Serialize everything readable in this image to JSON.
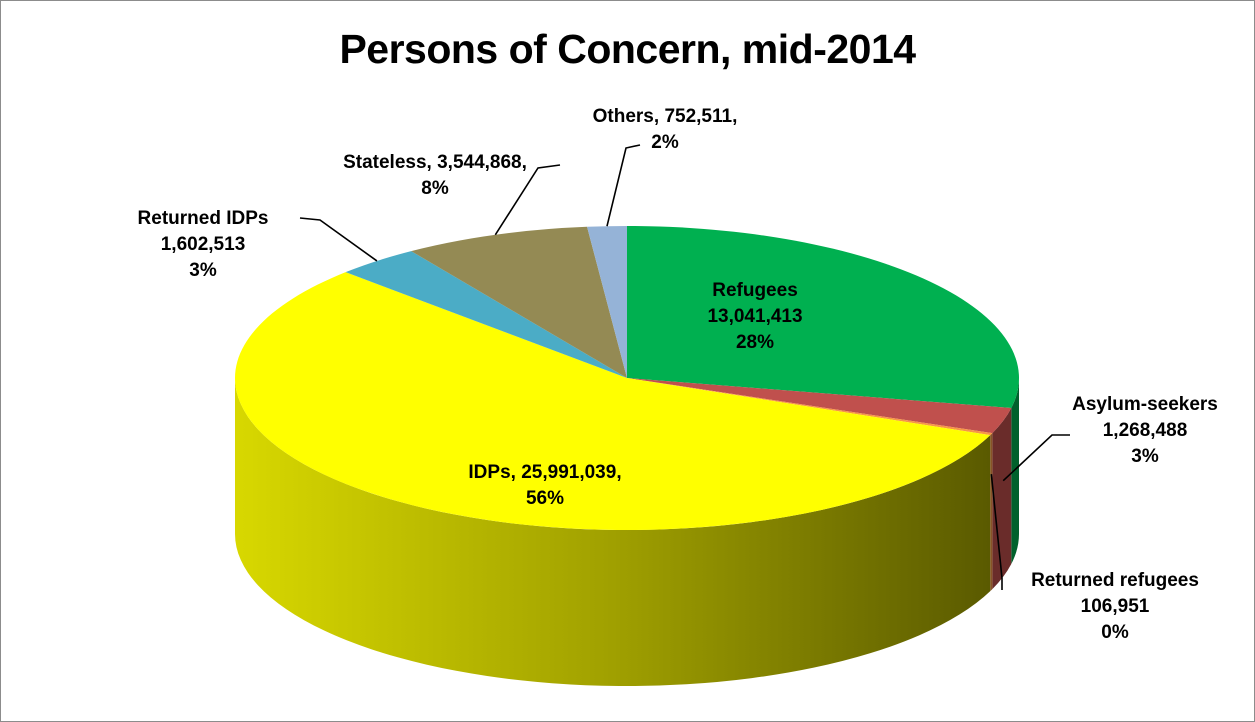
{
  "chart_data": {
    "type": "pie",
    "title": "Persons of Concern, mid-2014",
    "slices": [
      {
        "name": "Refugees",
        "value": 13041413,
        "percent": "28%",
        "value_label": "13,041,413",
        "color": "#00b050"
      },
      {
        "name": "Asylum-seekers",
        "value": 1268488,
        "percent": "3%",
        "value_label": "1,268,488",
        "color": "#c0504d"
      },
      {
        "name": "Returned refugees",
        "value": 106951,
        "percent": "0%",
        "value_label": "106,951",
        "color": "#f79646"
      },
      {
        "name": "IDPs",
        "value": 25991039,
        "percent": "56%",
        "value_label": "25,991,039",
        "color": "#ffff00"
      },
      {
        "name": "Returned IDPs",
        "value": 1602513,
        "percent": "3%",
        "value_label": "1,602,513",
        "color": "#4bacc6"
      },
      {
        "name": "Stateless",
        "value": 3544868,
        "percent": "8%",
        "value_label": "3,544,868",
        "color": "#948a54"
      },
      {
        "name": "Others",
        "value": 752511,
        "percent": "2%",
        "value_label": "752,511",
        "color": "#95b3d7"
      }
    ]
  }
}
